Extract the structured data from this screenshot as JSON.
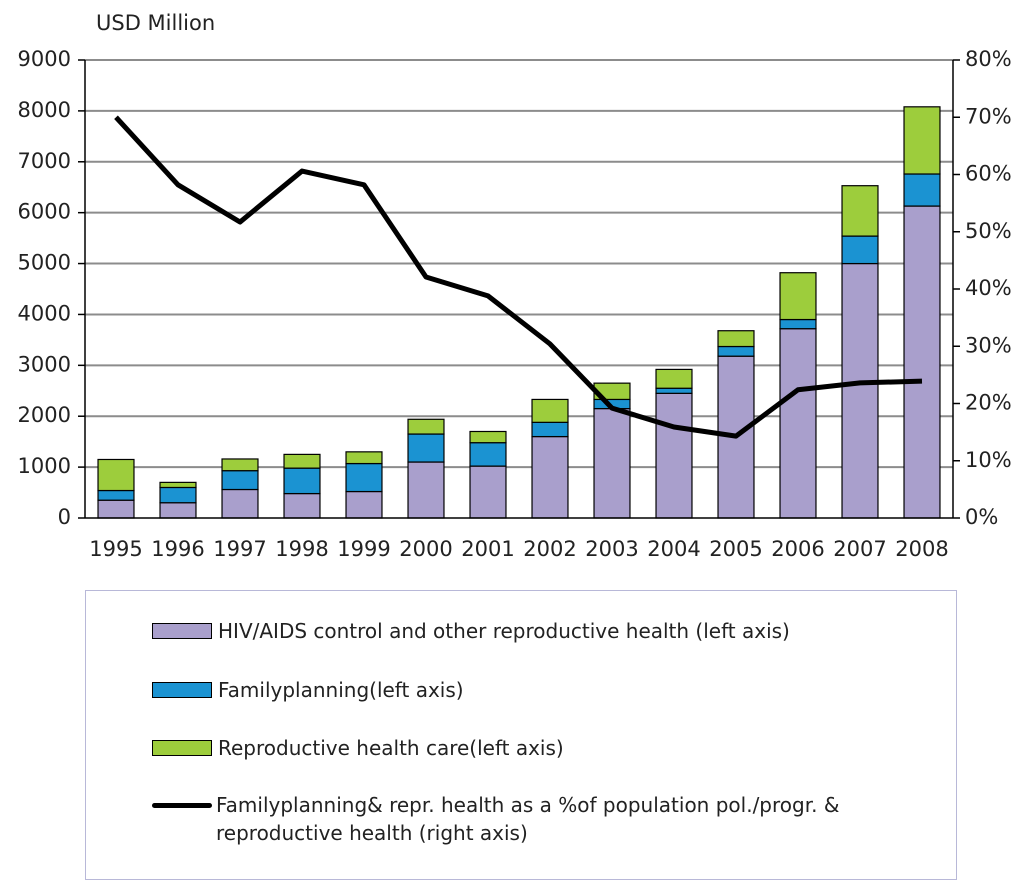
{
  "chart_data": {
    "type": "bar",
    "y_axis_label": "USD Million",
    "categories": [
      "1995",
      "1996",
      "1997",
      "1998",
      "1999",
      "2000",
      "2001",
      "2002",
      "2003",
      "2004",
      "2005",
      "2006",
      "2007",
      "2008"
    ],
    "series": [
      {
        "name": "HIV/AIDS control and other reproductive health (left axis)",
        "color": "#a99fcc",
        "values": [
          350,
          300,
          560,
          480,
          520,
          1100,
          1020,
          1600,
          2150,
          2450,
          3180,
          3720,
          5000,
          6130
        ]
      },
      {
        "name": "Familyplanning(left axis)",
        "color": "#1b93d2",
        "values": [
          190,
          300,
          370,
          500,
          550,
          550,
          460,
          280,
          180,
          100,
          190,
          180,
          540,
          630
        ]
      },
      {
        "name": "Reproductive health care(left axis)",
        "color": "#9dcd3c",
        "values": [
          610,
          100,
          230,
          270,
          230,
          290,
          220,
          450,
          320,
          370,
          310,
          920,
          990,
          1320
        ]
      },
      {
        "name": "Familyplanning& repr. health as a %of  population pol./progr. & reproductive health (right axis)",
        "color": "#000000",
        "type": "line",
        "axis": "y2",
        "values": [
          70,
          58.2,
          51.7,
          60.6,
          58.2,
          42.1,
          38.8,
          30.4,
          19.2,
          15.9,
          14.3,
          22.4,
          23.6,
          23.9
        ]
      }
    ],
    "stacked": true,
    "ylim": [
      0,
      9000
    ],
    "yticks": [
      0,
      1000,
      2000,
      3000,
      4000,
      5000,
      6000,
      7000,
      8000,
      9000
    ],
    "y2lim": [
      0,
      80
    ],
    "y2ticks": [
      {
        "value": 0,
        "label": "0%"
      },
      {
        "value": 10,
        "label": "10%"
      },
      {
        "value": 20,
        "label": "20%"
      },
      {
        "value": 30,
        "label": "30%"
      },
      {
        "value": 40,
        "label": "40%"
      },
      {
        "value": 50,
        "label": "50%"
      },
      {
        "value": 60,
        "label": "60%"
      },
      {
        "value": 70,
        "label": "70%"
      },
      {
        "value": 80,
        "label": "80%"
      }
    ],
    "grid": true
  }
}
